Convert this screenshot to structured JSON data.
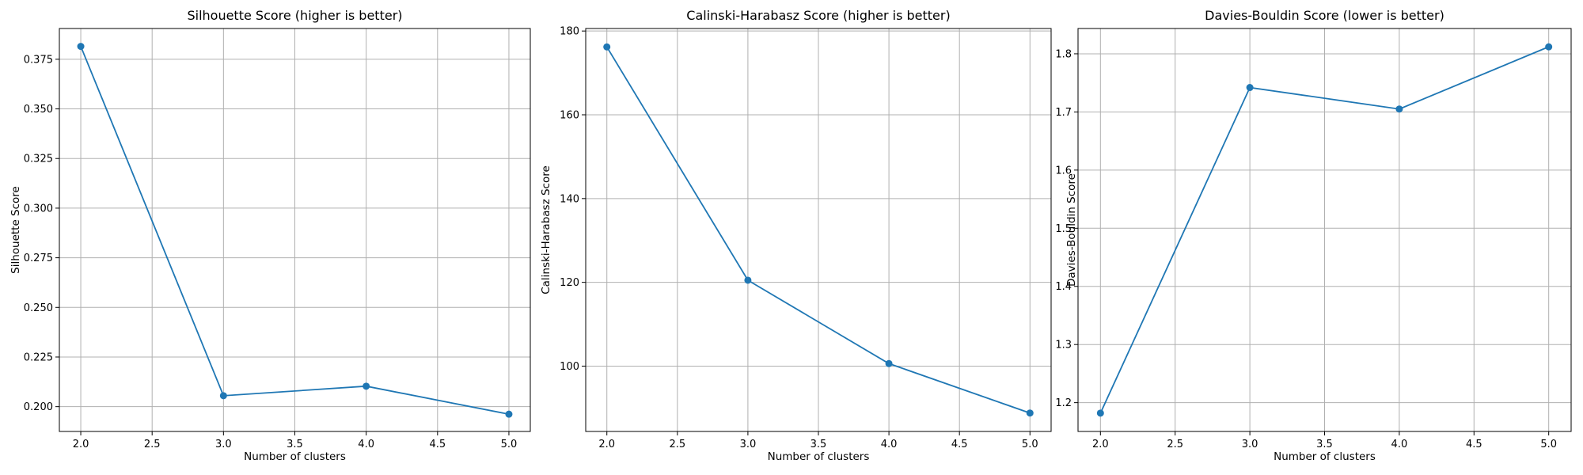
{
  "chart_data": [
    {
      "type": "line",
      "title": "Silhouette Score (higher is better)",
      "xlabel": "Number of clusters",
      "ylabel": "Silhouette Score",
      "x": [
        2,
        3,
        4,
        5
      ],
      "series": [
        {
          "values": [
            0.3815,
            0.2055,
            0.2103,
            0.1962
          ],
          "color": "#1f77b4",
          "marker": "circle"
        }
      ],
      "xlim": [
        1.85,
        5.15
      ],
      "ylim": [
        0.1875,
        0.3905
      ],
      "xticks": [
        "2.0",
        "2.5",
        "3.0",
        "3.5",
        "4.0",
        "4.5",
        "5.0"
      ],
      "yticks": [
        "0.200",
        "0.225",
        "0.250",
        "0.275",
        "0.300",
        "0.325",
        "0.350",
        "0.375"
      ],
      "grid": true
    },
    {
      "type": "line",
      "title": "Calinski-Harabasz Score (higher is better)",
      "xlabel": "Number of clusters",
      "ylabel": "Calinski-Harabasz Score",
      "x": [
        2,
        3,
        4,
        5
      ],
      "series": [
        {
          "values": [
            176.2,
            120.5,
            100.6,
            88.8
          ],
          "color": "#1f77b4",
          "marker": "circle"
        }
      ],
      "xlim": [
        1.85,
        5.15
      ],
      "ylim": [
        84.4,
        180.6
      ],
      "xticks": [
        "2.0",
        "2.5",
        "3.0",
        "3.5",
        "4.0",
        "4.5",
        "5.0"
      ],
      "yticks": [
        "100",
        "120",
        "140",
        "160",
        "180"
      ],
      "grid": true
    },
    {
      "type": "line",
      "title": "Davies-Bouldin Score (lower is better)",
      "xlabel": "Number of clusters",
      "ylabel": "Davies-Bouldin Score",
      "x": [
        2,
        3,
        4,
        5
      ],
      "series": [
        {
          "values": [
            1.182,
            1.742,
            1.705,
            1.812
          ],
          "color": "#1f77b4",
          "marker": "circle"
        }
      ],
      "xlim": [
        1.85,
        5.15
      ],
      "ylim": [
        1.1505,
        1.8435
      ],
      "xticks": [
        "2.0",
        "2.5",
        "3.0",
        "3.5",
        "4.0",
        "4.5",
        "5.0"
      ],
      "yticks": [
        "1.2",
        "1.3",
        "1.4",
        "1.5",
        "1.6",
        "1.7",
        "1.8"
      ],
      "grid": true
    }
  ]
}
